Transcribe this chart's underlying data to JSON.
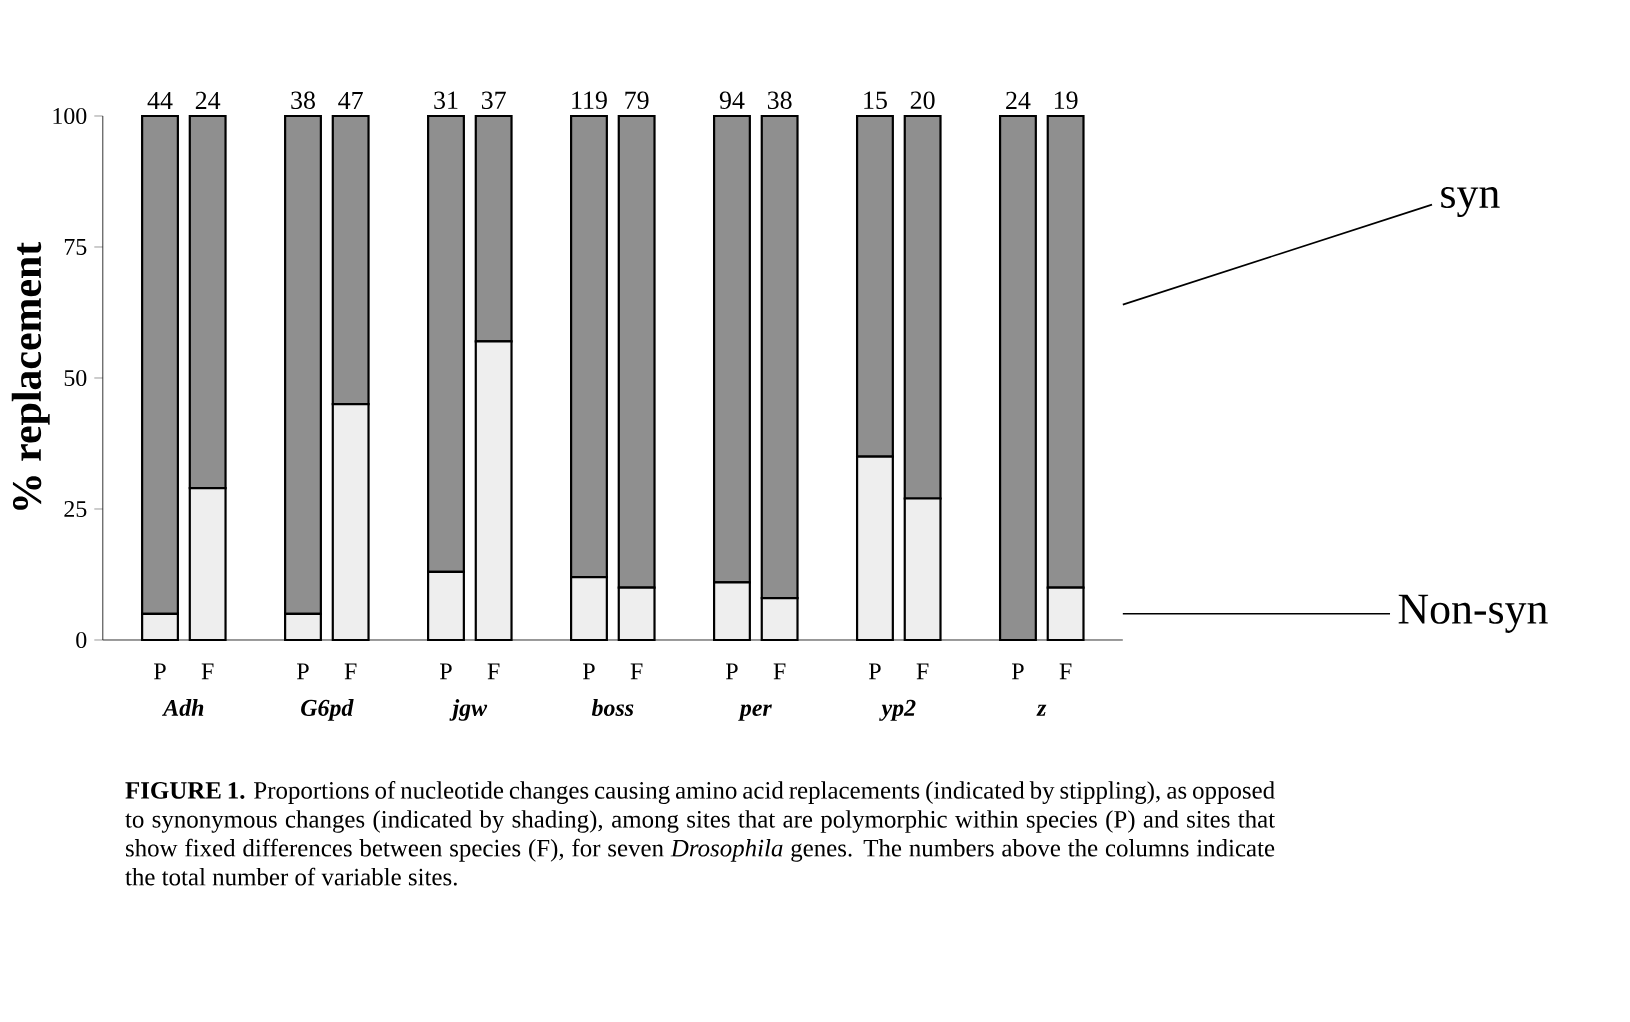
{
  "chart_data": {
    "type": "bar",
    "stacked": true,
    "ylabel": "% replacement",
    "categories": [
      "P",
      "F",
      "P",
      "F",
      "P",
      "F",
      "P",
      "F",
      "P",
      "F",
      "P",
      "F",
      "P",
      "F"
    ],
    "series": [
      {
        "name": "Non-syn",
        "color": "#eeeeee",
        "values": [
          5,
          29,
          5,
          45,
          13,
          57,
          12,
          10,
          11,
          8,
          35,
          27,
          0,
          10
        ]
      },
      {
        "name": "syn",
        "color": "#8f8f8f",
        "values": [
          95,
          71,
          95,
          55,
          87,
          43,
          88,
          90,
          89,
          92,
          65,
          73,
          100,
          90
        ]
      }
    ],
    "ylim": [
      0,
      100
    ],
    "yticks": [
      0,
      25,
      50,
      75,
      100
    ],
    "grid": false,
    "annotations": [
      "Adh",
      "G6pd",
      "jgw",
      "boss",
      "per",
      "yp2",
      "z",
      {
        "text": "44",
        "y": 100
      },
      {
        "text": "24",
        "y": 100
      },
      {
        "text": "38",
        "y": 100
      },
      {
        "text": "47",
        "y": 100
      },
      {
        "text": "31",
        "y": 100
      },
      {
        "text": "37",
        "y": 100
      },
      {
        "text": "119",
        "y": 100
      },
      {
        "text": "79",
        "y": 100
      },
      {
        "text": "94",
        "y": 100
      },
      {
        "text": "38",
        "y": 100
      },
      {
        "text": "15",
        "y": 100
      },
      {
        "text": "20",
        "y": 100
      },
      {
        "text": "24",
        "y": 100
      },
      {
        "text": "19",
        "y": 100
      },
      "**FIGURE 1.** Proportions of nucleotide changes causing amino acid replacements (indicated by stippling), as opposed to synonymous changes (indicated by shading), among sites that are polymorphic within species (P) and sites that show fixed differences between species (F), for seven *Drosophila* genes. The numbers above the columns indicate the total number of variable sites."
    ]
  }
}
